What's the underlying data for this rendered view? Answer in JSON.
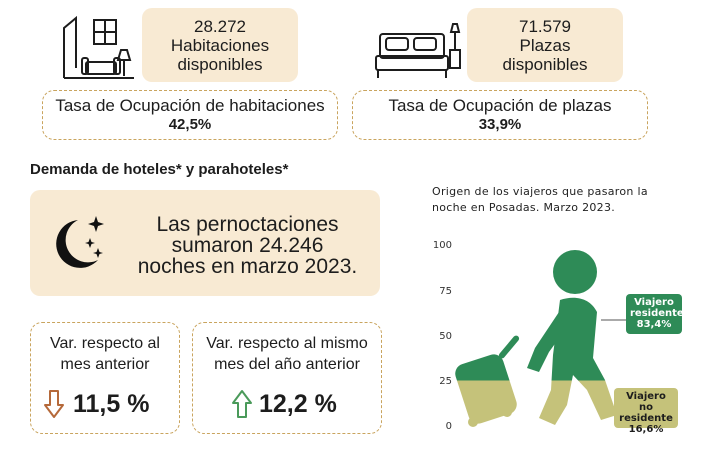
{
  "rooms": {
    "count": "28.272",
    "label_line1": "Habitaciones",
    "label_line2": "disponibles",
    "icon": "living-room-icon"
  },
  "places": {
    "count": "71.579",
    "label_line1": "Plazas",
    "label_line2": "disponibles",
    "icon": "bed-icon"
  },
  "room_occupancy": {
    "label": "Tasa de Ocupación de habitaciones",
    "value": "42,5%"
  },
  "place_occupancy": {
    "label": "Tasa de Ocupación de plazas",
    "value": "33,9%"
  },
  "demand": {
    "title": "Demanda de hoteles* y parahoteles*",
    "night_line1": "Las pernoctaciones",
    "night_line2": "sumaron 24.246",
    "night_line3": "noches en marzo 2023.",
    "icon": "moon-stars-icon"
  },
  "var_month": {
    "label_line1": "Var. respecto al",
    "label_line2": "mes anterior",
    "value": "11,5 %",
    "direction": "down",
    "icon": "arrow-down-icon"
  },
  "var_year": {
    "label_line1": "Var. respecto al mismo",
    "label_line2": "mes del año anterior",
    "value": "12,2 %",
    "direction": "up",
    "icon": "arrow-up-icon"
  },
  "chart_data": {
    "type": "pictogram",
    "title_line1": "Origen de los viajeros que pasaron la",
    "title_line2": "noche en Posadas. Marzo 2023.",
    "ylim": [
      0,
      100
    ],
    "yticks": [
      "100",
      "75",
      "50",
      "25",
      "0"
    ],
    "series": [
      {
        "name_line1": "Viajero",
        "name_line2": "residente",
        "value_label": "83,4%",
        "value": 83.4,
        "color": "#2e8b57"
      },
      {
        "name_line1": "Viajero no",
        "name_line2": "residente",
        "value_label": "16,6%",
        "value": 16.6,
        "color": "#c5c27a"
      }
    ]
  },
  "colors": {
    "beige": "#f8ead3",
    "dashed_border": "#c9a45e",
    "green": "#2e8b57",
    "olive": "#c5c27a"
  }
}
